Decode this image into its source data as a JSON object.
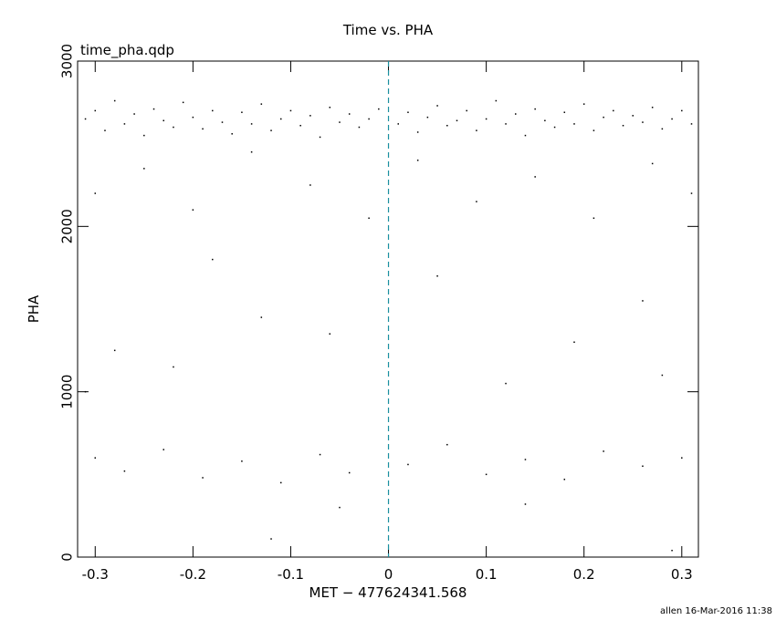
{
  "chart_data": {
    "type": "scatter",
    "title": "Time vs. PHA",
    "subtitle": "time_pha.qdp",
    "xlabel": "MET − 477624341.568",
    "ylabel": "PHA",
    "footer": "allen 16-Mar-2016 11:38",
    "xlim": [
      -0.318,
      0.317
    ],
    "ylim": [
      0,
      3000
    ],
    "xticks": [
      -0.3,
      -0.2,
      -0.1,
      0,
      0.1,
      0.2,
      0.3
    ],
    "yticks": [
      0,
      1000,
      2000,
      3000
    ],
    "color": "#000000",
    "vline": 0,
    "vline_color": "#1a8fa0",
    "x": [
      -0.31,
      -0.3,
      -0.29,
      -0.28,
      -0.27,
      -0.26,
      -0.25,
      -0.24,
      -0.23,
      -0.22,
      -0.21,
      -0.2,
      -0.19,
      -0.18,
      -0.17,
      -0.16,
      -0.15,
      -0.14,
      -0.13,
      -0.12,
      -0.11,
      -0.1,
      -0.09,
      -0.08,
      -0.07,
      -0.06,
      -0.05,
      -0.04,
      -0.03,
      -0.02,
      -0.01,
      0.01,
      0.02,
      0.03,
      0.04,
      0.05,
      0.06,
      0.07,
      0.08,
      0.09,
      0.1,
      0.11,
      0.12,
      0.13,
      0.14,
      0.15,
      0.16,
      0.17,
      0.18,
      0.19,
      0.2,
      0.21,
      0.22,
      0.23,
      0.24,
      0.25,
      0.26,
      0.27,
      0.28,
      0.29,
      0.3,
      0.31,
      -0.3,
      -0.25,
      -0.2,
      -0.14,
      -0.08,
      -0.02,
      0.03,
      0.09,
      0.15,
      0.21,
      0.27,
      0.31,
      -0.28,
      -0.22,
      -0.13,
      -0.06,
      0.05,
      0.12,
      0.19,
      0.26,
      -0.18,
      -0.31,
      0.28,
      -0.3,
      -0.27,
      -0.23,
      -0.19,
      -0.15,
      -0.11,
      -0.07,
      -0.04,
      0.02,
      0.06,
      0.1,
      0.14,
      0.18,
      0.22,
      0.26,
      0.3,
      -0.05,
      0.14,
      -0.12,
      0.29
    ],
    "y": [
      2650,
      2700,
      2580,
      2760,
      2620,
      2680,
      2550,
      2710,
      2640,
      2600,
      2750,
      2660,
      2590,
      2700,
      2630,
      2560,
      2690,
      2620,
      2740,
      2580,
      2650,
      2700,
      2610,
      2670,
      2540,
      2720,
      2630,
      2680,
      2600,
      2650,
      2710,
      2620,
      2690,
      2570,
      2660,
      2730,
      2610,
      2640,
      2700,
      2580,
      2650,
      2760,
      2620,
      2680,
      2550,
      2710,
      2640,
      2600,
      2690,
      2620,
      2740,
      2580,
      2660,
      2700,
      2610,
      2670,
      2630,
      2720,
      2590,
      2650,
      2700,
      2620,
      2200,
      2350,
      2100,
      2450,
      2250,
      2050,
      2400,
      2150,
      2300,
      2050,
      2380,
      2200,
      1250,
      1150,
      1450,
      1350,
      1700,
      1050,
      1300,
      1550,
      1800,
      1000,
      1100,
      600,
      520,
      650,
      480,
      580,
      450,
      620,
      510,
      560,
      680,
      500,
      590,
      470,
      640,
      550,
      600,
      300,
      320,
      110,
      40
    ]
  }
}
